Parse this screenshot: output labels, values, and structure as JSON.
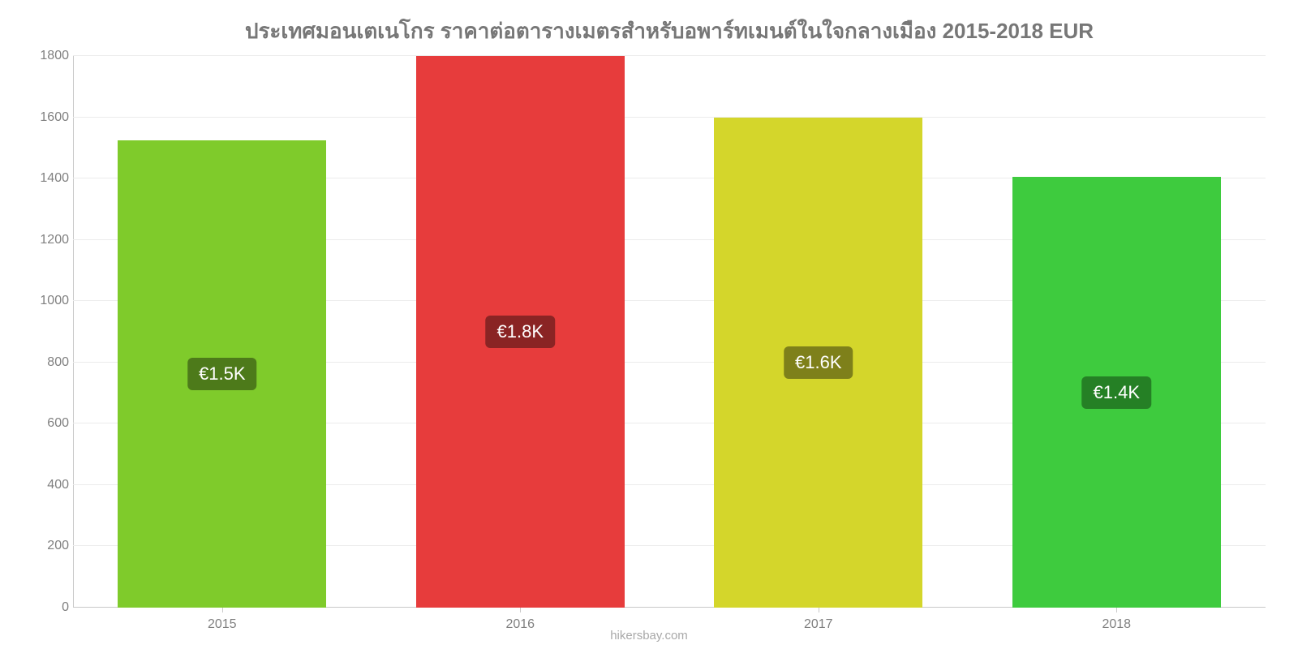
{
  "chart": {
    "type": "bar",
    "title": "ประเทศมอนเตเนโกร ราคาต่อตารางเมตรสำหรับอพาร์ทเมนต์ในใจกลางเมือง 2015-2018 EUR",
    "title_color": "#777777",
    "title_fontsize": 26,
    "background_color": "#ffffff",
    "grid_color": "#ececec",
    "axis_line_color": "#c8c8c8",
    "tick_label_color": "#808080",
    "tick_fontsize": 16,
    "ylim": [
      0,
      1800
    ],
    "yticks": [
      0,
      200,
      400,
      600,
      800,
      1000,
      1200,
      1400,
      1600,
      1800
    ],
    "categories": [
      "2015",
      "2016",
      "2017",
      "2018"
    ],
    "values": [
      1525,
      1800,
      1600,
      1405
    ],
    "bar_colors": [
      "#7fcb2b",
      "#e73c3c",
      "#d4d62b",
      "#3ecb3e"
    ],
    "bar_label_bg": [
      "#4d7a1a",
      "#8a2424",
      "#7e801a",
      "#258025"
    ],
    "value_labels": [
      "€1.5K",
      "€1.8K",
      "€1.6K",
      "€1.4K"
    ],
    "value_label_color": "#ffffff",
    "value_label_fontsize": 22,
    "bar_width": 0.7,
    "source": "hikersbay.com",
    "source_color": "#a8a8a8",
    "source_fontsize": 15
  }
}
